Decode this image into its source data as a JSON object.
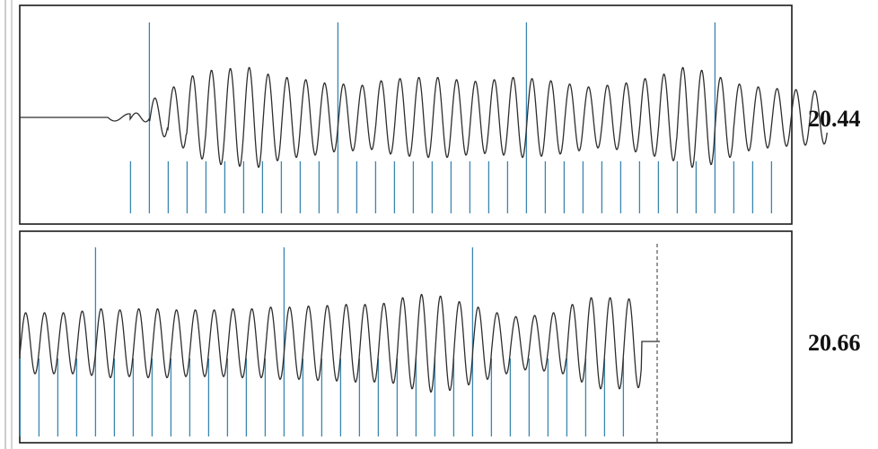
{
  "panels": [
    {
      "value_label": "20.44"
    },
    {
      "value_label": "20.66"
    }
  ],
  "colors": {
    "waveform": "#2e2e2e",
    "markers": "#3a86b0",
    "frame": "#1a1a1a",
    "dashed_end": "#555555"
  },
  "chart_data": [
    {
      "type": "line",
      "title": "",
      "xlabel": "",
      "ylabel": "",
      "grid": false,
      "series": [
        {
          "start_cycle": 1,
          "cycles": 37,
          "amplitudes": [
            0.08,
            0.35,
            0.55,
            0.75,
            0.85,
            0.88,
            0.9,
            0.78,
            0.72,
            0.68,
            0.62,
            0.6,
            0.58,
            0.66,
            0.7,
            0.72,
            0.72,
            0.68,
            0.65,
            0.68,
            0.72,
            0.7,
            0.66,
            0.6,
            0.55,
            0.58,
            0.62,
            0.7,
            0.78,
            0.9,
            0.85,
            0.72,
            0.6,
            0.55,
            0.52,
            0.5,
            0.48
          ],
          "trailing_flat": false
        }
      ],
      "markers": {
        "every_cycles": 10,
        "first_cycle": 1,
        "long_marker_first_cycle": 1
      }
    },
    {
      "type": "line",
      "title": "",
      "xlabel": "",
      "ylabel": "",
      "grid": false,
      "series": [
        {
          "start_cycle": 0,
          "cycles": 33,
          "amplitudes": [
            0.55,
            0.55,
            0.55,
            0.58,
            0.62,
            0.6,
            0.62,
            0.62,
            0.6,
            0.6,
            0.6,
            0.62,
            0.62,
            0.65,
            0.65,
            0.67,
            0.68,
            0.7,
            0.7,
            0.72,
            0.82,
            0.88,
            0.85,
            0.75,
            0.65,
            0.55,
            0.48,
            0.5,
            0.55,
            0.7,
            0.82,
            0.82,
            0.8
          ],
          "trailing_flat": true
        }
      ],
      "markers": {
        "every_cycles": 10,
        "first_cycle": 0,
        "long_marker_first_cycle": 4,
        "count": 33
      }
    }
  ]
}
